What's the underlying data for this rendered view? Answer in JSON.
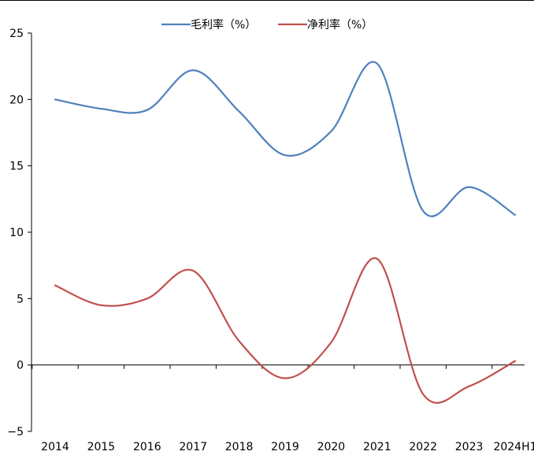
{
  "chart_data": {
    "type": "line",
    "title": "",
    "xlabel": "",
    "ylabel": "",
    "categories": [
      "2014",
      "2015",
      "2016",
      "2017",
      "2018",
      "2019",
      "2020",
      "2021",
      "2022",
      "2023",
      "2024H1"
    ],
    "ylim": [
      -5,
      25
    ],
    "yticks": [
      -5,
      0,
      5,
      10,
      15,
      20,
      25
    ],
    "grid": false,
    "legend_position": "top-center",
    "smooth": true,
    "series": [
      {
        "name": "毛利率（%）",
        "color": "#4f81bd",
        "values": [
          20.0,
          19.3,
          19.2,
          22.2,
          19.1,
          15.8,
          17.6,
          22.7,
          11.6,
          13.4,
          11.3
        ]
      },
      {
        "name": "净利率（%）",
        "color": "#c0504d",
        "values": [
          6.0,
          4.5,
          5.0,
          7.1,
          1.8,
          -1.0,
          1.7,
          8.0,
          -2.2,
          -1.6,
          0.3
        ]
      }
    ]
  }
}
